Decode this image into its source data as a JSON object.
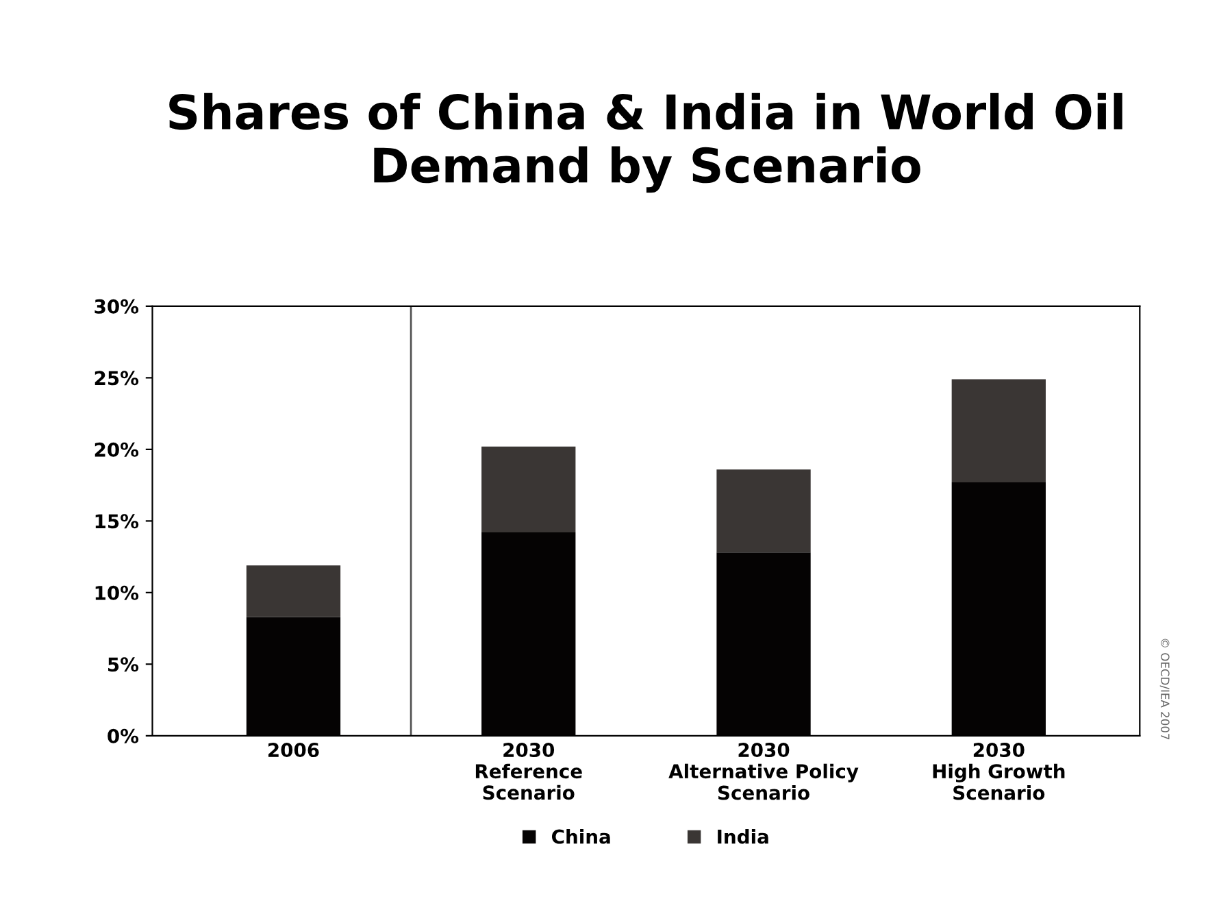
{
  "chart_data": {
    "type": "bar",
    "title": "Shares of China & India in World Oil\nDemand by Scenario",
    "categories": [
      "2006",
      "2030\nReference\nScenario",
      "2030\nAlternative Policy\nScenario",
      "2030\nHigh Growth\nScenario"
    ],
    "stacked": true,
    "series": [
      {
        "name": "China",
        "color": "#050303",
        "values": [
          8.3,
          14.2,
          12.8,
          17.7
        ]
      },
      {
        "name": "India",
        "color": "#3a3634",
        "values": [
          3.6,
          6.0,
          5.8,
          7.2
        ]
      }
    ],
    "ylim": [
      0,
      30
    ],
    "yticks": [
      {
        "value": 0,
        "label": "0%"
      },
      {
        "value": 5,
        "label": "5%"
      },
      {
        "value": 10,
        "label": "10%"
      },
      {
        "value": 15,
        "label": "15%"
      },
      {
        "value": 20,
        "label": "20%"
      },
      {
        "value": 25,
        "label": "25%"
      },
      {
        "value": 30,
        "label": "30%"
      }
    ],
    "annotations": [
      "© OECD/IEA 2007"
    ],
    "grid": false,
    "legend": "bottom"
  }
}
